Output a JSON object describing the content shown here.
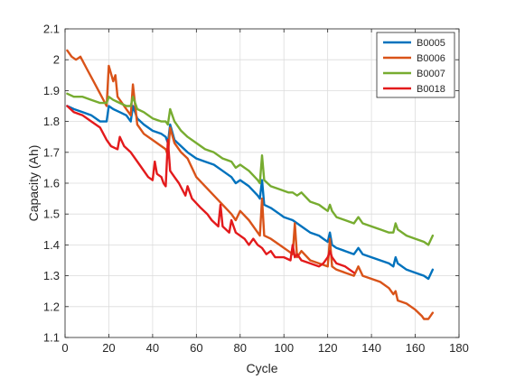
{
  "chart_data": {
    "type": "line",
    "title": "",
    "xlabel": "Cycle",
    "ylabel": "Capacity (Ah)",
    "xlim": [
      0,
      180
    ],
    "ylim": [
      1.1,
      2.1
    ],
    "xticks": [
      0,
      20,
      40,
      60,
      80,
      100,
      120,
      140,
      160,
      180
    ],
    "xtick_labels": [
      "0",
      "20",
      "40",
      "60",
      "80",
      "100",
      "120",
      "140",
      "160",
      "180"
    ],
    "yticks": [
      1.1,
      1.2,
      1.3,
      1.4,
      1.5,
      1.6,
      1.7,
      1.8,
      1.9,
      2.0,
      2.1
    ],
    "ytick_labels": [
      "1.1",
      "1.2",
      "1.3",
      "1.4",
      "1.5",
      "1.6",
      "1.7",
      "1.8",
      "1.9",
      "2",
      "2.1"
    ],
    "grid": true,
    "legend_position": "top-right",
    "series": [
      {
        "name": "B0005",
        "color": "#0072BD",
        "x": [
          1,
          4,
          8,
          12,
          16,
          19,
          20,
          22,
          25,
          28,
          30,
          31,
          33,
          36,
          40,
          44,
          46,
          47,
          48,
          50,
          53,
          56,
          60,
          64,
          68,
          72,
          76,
          78,
          80,
          84,
          88,
          89,
          90,
          91,
          94,
          98,
          100,
          104,
          108,
          112,
          116,
          118,
          120,
          121,
          122,
          124,
          128,
          132,
          134,
          136,
          140,
          144,
          148,
          150,
          151,
          152,
          156,
          160,
          164,
          166,
          168
        ],
        "y": [
          1.85,
          1.84,
          1.83,
          1.82,
          1.8,
          1.8,
          1.85,
          1.84,
          1.83,
          1.82,
          1.8,
          1.85,
          1.81,
          1.79,
          1.77,
          1.76,
          1.75,
          1.73,
          1.79,
          1.74,
          1.72,
          1.7,
          1.68,
          1.67,
          1.66,
          1.64,
          1.62,
          1.6,
          1.61,
          1.59,
          1.56,
          1.55,
          1.61,
          1.53,
          1.52,
          1.5,
          1.49,
          1.48,
          1.46,
          1.44,
          1.43,
          1.42,
          1.41,
          1.44,
          1.4,
          1.39,
          1.38,
          1.37,
          1.39,
          1.37,
          1.36,
          1.35,
          1.34,
          1.33,
          1.36,
          1.34,
          1.32,
          1.31,
          1.3,
          1.29,
          1.32
        ]
      },
      {
        "name": "B0006",
        "color": "#D95319",
        "x": [
          1,
          3,
          5,
          7,
          10,
          13,
          16,
          19,
          20,
          22,
          23,
          24,
          26,
          28,
          30,
          31,
          33,
          36,
          40,
          44,
          46,
          47,
          48,
          50,
          53,
          56,
          60,
          64,
          68,
          72,
          76,
          78,
          80,
          84,
          88,
          89,
          90,
          91,
          94,
          98,
          102,
          104,
          105,
          106,
          108,
          112,
          116,
          120,
          121,
          122,
          124,
          128,
          132,
          134,
          136,
          140,
          144,
          148,
          150,
          151,
          152,
          156,
          160,
          163,
          164,
          166,
          168
        ],
        "y": [
          2.03,
          2.01,
          2.0,
          2.01,
          1.97,
          1.93,
          1.89,
          1.85,
          1.98,
          1.93,
          1.95,
          1.88,
          1.86,
          1.84,
          1.82,
          1.92,
          1.79,
          1.76,
          1.74,
          1.72,
          1.71,
          1.69,
          1.78,
          1.73,
          1.7,
          1.68,
          1.62,
          1.59,
          1.56,
          1.53,
          1.5,
          1.48,
          1.51,
          1.48,
          1.44,
          1.43,
          1.55,
          1.43,
          1.42,
          1.4,
          1.38,
          1.37,
          1.47,
          1.36,
          1.38,
          1.35,
          1.34,
          1.33,
          1.42,
          1.33,
          1.32,
          1.31,
          1.3,
          1.33,
          1.3,
          1.29,
          1.28,
          1.26,
          1.24,
          1.25,
          1.22,
          1.21,
          1.19,
          1.17,
          1.16,
          1.16,
          1.18
        ]
      },
      {
        "name": "B0007",
        "color": "#77AC30",
        "x": [
          1,
          4,
          8,
          12,
          16,
          19,
          20,
          22,
          25,
          28,
          30,
          31,
          33,
          36,
          40,
          44,
          46,
          47,
          48,
          50,
          53,
          56,
          60,
          64,
          68,
          72,
          76,
          78,
          80,
          84,
          88,
          89,
          90,
          91,
          94,
          98,
          102,
          104,
          106,
          108,
          112,
          116,
          118,
          120,
          121,
          122,
          124,
          128,
          132,
          134,
          136,
          140,
          144,
          148,
          150,
          151,
          152,
          156,
          160,
          164,
          166,
          168
        ],
        "y": [
          1.89,
          1.88,
          1.88,
          1.87,
          1.86,
          1.86,
          1.88,
          1.87,
          1.86,
          1.85,
          1.85,
          1.88,
          1.84,
          1.83,
          1.81,
          1.8,
          1.8,
          1.79,
          1.84,
          1.8,
          1.77,
          1.75,
          1.73,
          1.71,
          1.7,
          1.68,
          1.67,
          1.65,
          1.66,
          1.64,
          1.61,
          1.6,
          1.69,
          1.61,
          1.59,
          1.58,
          1.57,
          1.57,
          1.56,
          1.57,
          1.54,
          1.53,
          1.52,
          1.51,
          1.53,
          1.51,
          1.49,
          1.48,
          1.47,
          1.49,
          1.47,
          1.46,
          1.45,
          1.44,
          1.44,
          1.47,
          1.45,
          1.43,
          1.42,
          1.41,
          1.4,
          1.43
        ]
      },
      {
        "name": "B0018",
        "color": "#E31A1C",
        "x": [
          1,
          4,
          8,
          12,
          16,
          19,
          21,
          24,
          25,
          27,
          30,
          34,
          38,
          40,
          41,
          42,
          44,
          45,
          46,
          47,
          48,
          50,
          52,
          55,
          56,
          58,
          62,
          65,
          67,
          70,
          71,
          72,
          75,
          76,
          78,
          82,
          84,
          86,
          88,
          90,
          92,
          94,
          96,
          100,
          103,
          104,
          105,
          106,
          108,
          112,
          116,
          118,
          120,
          121,
          122,
          124,
          128,
          130,
          132
        ],
        "y": [
          1.85,
          1.83,
          1.82,
          1.8,
          1.78,
          1.74,
          1.72,
          1.71,
          1.75,
          1.72,
          1.7,
          1.66,
          1.62,
          1.61,
          1.67,
          1.63,
          1.62,
          1.6,
          1.59,
          1.74,
          1.64,
          1.62,
          1.6,
          1.56,
          1.59,
          1.55,
          1.52,
          1.5,
          1.48,
          1.46,
          1.53,
          1.46,
          1.44,
          1.48,
          1.44,
          1.42,
          1.4,
          1.42,
          1.4,
          1.39,
          1.37,
          1.38,
          1.36,
          1.36,
          1.35,
          1.4,
          1.36,
          1.37,
          1.35,
          1.34,
          1.33,
          1.34,
          1.36,
          1.38,
          1.36,
          1.34,
          1.33,
          1.32,
          1.31
        ]
      }
    ]
  }
}
